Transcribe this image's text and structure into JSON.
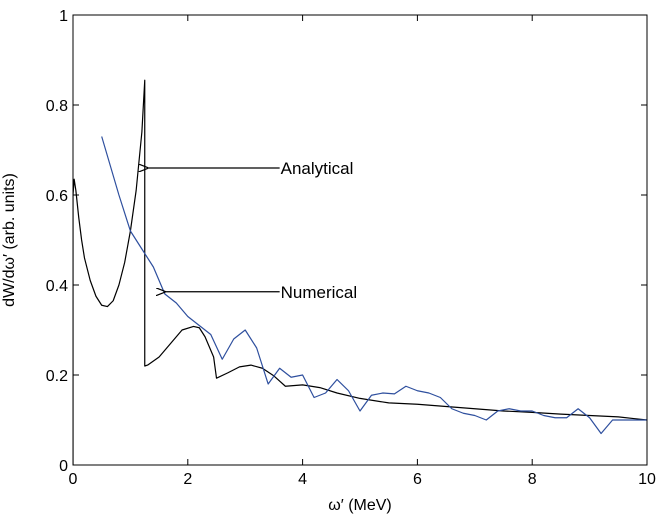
{
  "chart_data": {
    "type": "line",
    "title": "",
    "xlabel": "ω′ (MeV)",
    "ylabel": "dW/dω′ (arb. units)",
    "xlim": [
      0,
      10
    ],
    "ylim": [
      0,
      1
    ],
    "x_ticks": [
      "0",
      "2",
      "4",
      "6",
      "8",
      "10"
    ],
    "y_ticks": [
      "0",
      "0.2",
      "0.4",
      "0.6",
      "0.8",
      "1"
    ],
    "grid": false,
    "series": [
      {
        "name": "Analytical",
        "color": "#000000",
        "x": [
          0.0,
          0.0,
          0.02,
          0.05,
          0.1,
          0.15,
          0.2,
          0.3,
          0.4,
          0.5,
          0.6,
          0.7,
          0.8,
          0.9,
          1.0,
          1.1,
          1.2,
          1.25,
          1.25,
          1.3,
          1.5,
          1.7,
          1.9,
          2.1,
          2.2,
          2.3,
          2.45,
          2.5,
          2.5,
          2.7,
          2.9,
          3.1,
          3.3,
          3.5,
          3.7,
          4.0,
          4.3,
          4.6,
          5.0,
          5.5,
          6.0,
          6.5,
          7.0,
          7.5,
          8.0,
          8.5,
          9.0,
          9.5,
          10.0
        ],
        "y": [
          0.0,
          0.6,
          0.635,
          0.61,
          0.55,
          0.5,
          0.46,
          0.41,
          0.375,
          0.355,
          0.352,
          0.365,
          0.4,
          0.45,
          0.52,
          0.61,
          0.74,
          0.855,
          0.22,
          0.222,
          0.24,
          0.27,
          0.3,
          0.308,
          0.305,
          0.285,
          0.24,
          0.193,
          0.193,
          0.205,
          0.218,
          0.222,
          0.215,
          0.198,
          0.175,
          0.178,
          0.172,
          0.16,
          0.148,
          0.138,
          0.135,
          0.13,
          0.125,
          0.12,
          0.117,
          0.113,
          0.11,
          0.107,
          0.1
        ]
      },
      {
        "name": "Numerical",
        "color": "#2e4f9e",
        "x": [
          0.5,
          0.8,
          1.0,
          1.2,
          1.4,
          1.6,
          1.8,
          2.0,
          2.2,
          2.4,
          2.6,
          2.8,
          3.0,
          3.2,
          3.4,
          3.6,
          3.8,
          4.0,
          4.2,
          4.4,
          4.6,
          4.8,
          5.0,
          5.2,
          5.4,
          5.6,
          5.8,
          6.0,
          6.2,
          6.4,
          6.6,
          6.8,
          7.0,
          7.2,
          7.4,
          7.6,
          7.8,
          8.0,
          8.2,
          8.4,
          8.6,
          8.8,
          9.0,
          9.2,
          9.4,
          9.6,
          9.8,
          10.0
        ],
        "y": [
          0.73,
          0.6,
          0.52,
          0.48,
          0.44,
          0.38,
          0.36,
          0.33,
          0.31,
          0.29,
          0.235,
          0.28,
          0.3,
          0.26,
          0.18,
          0.215,
          0.195,
          0.2,
          0.15,
          0.16,
          0.19,
          0.165,
          0.12,
          0.155,
          0.16,
          0.158,
          0.175,
          0.165,
          0.16,
          0.15,
          0.125,
          0.115,
          0.11,
          0.1,
          0.12,
          0.125,
          0.12,
          0.12,
          0.11,
          0.105,
          0.105,
          0.125,
          0.105,
          0.07,
          0.1,
          0.1,
          0.1,
          0.1
        ]
      }
    ],
    "annotations": [
      {
        "text": "Analytical",
        "target_x": 1.3,
        "target_y": 0.66,
        "text_x": 3.6,
        "text_y": 0.66
      },
      {
        "text": "Numerical",
        "target_x": 1.6,
        "target_y": 0.385,
        "text_x": 3.6,
        "text_y": 0.385
      }
    ]
  }
}
